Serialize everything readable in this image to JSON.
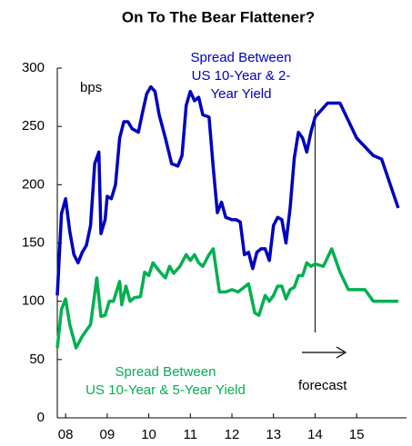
{
  "chart_data": {
    "type": "line",
    "title": "On To The Bear Flattener?",
    "y_label": "bps",
    "annotation": "forecast",
    "forecast_x": 2014,
    "xlim": [
      2007.8,
      2016.2
    ],
    "xticks": [
      {
        "value": 2008,
        "label": "08"
      },
      {
        "value": 2009,
        "label": "09"
      },
      {
        "value": 2010,
        "label": "10"
      },
      {
        "value": 2011,
        "label": "11"
      },
      {
        "value": 2012,
        "label": "12"
      },
      {
        "value": 2013,
        "label": "13"
      },
      {
        "value": 2014,
        "label": "14"
      },
      {
        "value": 2015,
        "label": "15"
      }
    ],
    "ylim": [
      0,
      300
    ],
    "yticks": [
      0,
      50,
      100,
      150,
      200,
      250,
      300
    ],
    "series": [
      {
        "name": [
          "Spread Between",
          "US 10-Year & 2-",
          "Year Yield"
        ],
        "color": "#0000c0",
        "x": [
          2007.8,
          2007.9,
          2008.0,
          2008.1,
          2008.2,
          2008.3,
          2008.4,
          2008.5,
          2008.6,
          2008.7,
          2008.8,
          2008.85,
          2008.95,
          2009.0,
          2009.1,
          2009.2,
          2009.3,
          2009.4,
          2009.5,
          2009.6,
          2009.75,
          2009.85,
          2009.95,
          2010.05,
          2010.15,
          2010.25,
          2010.4,
          2010.55,
          2010.7,
          2010.8,
          2010.9,
          2011.0,
          2011.1,
          2011.2,
          2011.3,
          2011.45,
          2011.55,
          2011.65,
          2011.75,
          2011.85,
          2012.0,
          2012.1,
          2012.2,
          2012.3,
          2012.4,
          2012.5,
          2012.6,
          2012.7,
          2012.8,
          2012.9,
          2013.0,
          2013.1,
          2013.2,
          2013.3,
          2013.4,
          2013.5,
          2013.6,
          2013.7,
          2013.8,
          2013.9,
          2014.0,
          2014.2,
          2014.3,
          2014.6,
          2014.8,
          2015.0,
          2015.4,
          2015.6,
          2016.0
        ],
        "values": [
          105,
          175,
          188,
          160,
          140,
          133,
          142,
          148,
          165,
          218,
          228,
          158,
          170,
          190,
          188,
          200,
          240,
          254,
          254,
          248,
          245,
          262,
          278,
          284,
          280,
          260,
          240,
          218,
          216,
          225,
          268,
          280,
          272,
          275,
          260,
          258,
          215,
          176,
          185,
          172,
          170,
          170,
          168,
          140,
          142,
          128,
          142,
          145,
          145,
          135,
          165,
          172,
          170,
          150,
          180,
          223,
          245,
          240,
          228,
          245,
          258,
          266,
          270,
          270,
          255,
          240,
          225,
          222,
          180
        ]
      },
      {
        "name": [
          "Spread Between",
          "US 10-Year & 5-Year Yield"
        ],
        "color": "#00b050",
        "x": [
          2007.8,
          2007.9,
          2008.0,
          2008.1,
          2008.25,
          2008.4,
          2008.6,
          2008.75,
          2008.85,
          2008.95,
          2009.05,
          2009.15,
          2009.3,
          2009.35,
          2009.45,
          2009.55,
          2009.65,
          2009.8,
          2009.9,
          2010.0,
          2010.1,
          2010.25,
          2010.4,
          2010.5,
          2010.6,
          2010.75,
          2010.9,
          2011.0,
          2011.1,
          2011.2,
          2011.3,
          2011.45,
          2011.55,
          2011.7,
          2011.85,
          2012.0,
          2012.15,
          2012.4,
          2012.55,
          2012.65,
          2012.8,
          2012.9,
          2013.0,
          2013.1,
          2013.2,
          2013.3,
          2013.4,
          2013.5,
          2013.6,
          2013.7,
          2013.8,
          2013.9,
          2014.0,
          2014.2,
          2014.4,
          2014.6,
          2014.8,
          2015.0,
          2015.2,
          2015.4,
          2016.0
        ],
        "values": [
          60,
          93,
          102,
          80,
          60,
          70,
          80,
          120,
          87,
          88,
          100,
          100,
          117,
          97,
          113,
          100,
          103,
          104,
          125,
          122,
          133,
          126,
          120,
          130,
          124,
          130,
          140,
          135,
          140,
          133,
          130,
          140,
          145,
          108,
          108,
          110,
          108,
          115,
          90,
          88,
          105,
          100,
          105,
          113,
          113,
          102,
          110,
          112,
          122,
          122,
          133,
          130,
          132,
          130,
          145,
          125,
          110,
          110,
          110,
          100,
          100
        ]
      }
    ]
  }
}
